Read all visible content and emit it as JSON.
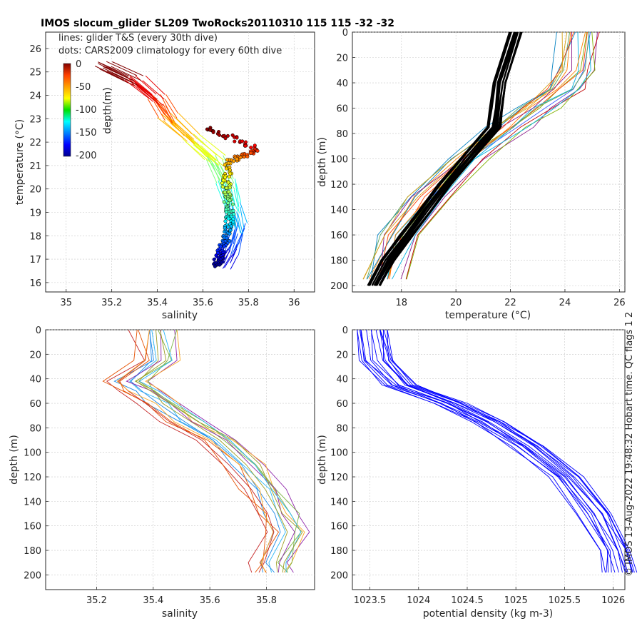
{
  "title": "IMOS slocum_glider SL209 TwoRocks20110310 115  115  -32  -32",
  "side_text": "© IMOS 13-Aug-2022 19:48:32 Hobart time. QC flags 1  2",
  "legend": {
    "line1": "lines: glider T&S (every 30th dive)",
    "line2": "dots: CARS2009 climatology for every 60th dive"
  },
  "colorbar": {
    "label": "depth(m)",
    "ticks": [
      "0",
      "-50",
      "-100",
      "-150",
      "-200"
    ]
  },
  "colors": {
    "profile_blue": "#0000ff",
    "clim_black": "#000000",
    "grid": "#c8c8c8"
  },
  "chart_data": [
    {
      "type": "scatter",
      "name": "TS diagram",
      "xlabel": "salinity",
      "ylabel": "temperature (°C)",
      "xlim": [
        34.91,
        36.09
      ],
      "ylim": [
        15.6,
        26.7
      ],
      "xticks": [
        "35",
        "35.2",
        "35.4",
        "35.6",
        "35.8",
        "36"
      ],
      "yticks": [
        "16",
        "17",
        "18",
        "19",
        "20",
        "21",
        "22",
        "23",
        "24",
        "25",
        "26"
      ],
      "glider_ts": [
        [
          35.17,
          25.2
        ],
        [
          35.3,
          24.6
        ],
        [
          35.4,
          23.8
        ],
        [
          35.45,
          23.0
        ],
        [
          35.55,
          22.1
        ],
        [
          35.65,
          21.2
        ],
        [
          35.7,
          20.2
        ],
        [
          35.73,
          19.2
        ],
        [
          35.75,
          18.3
        ],
        [
          35.72,
          17.4
        ],
        [
          35.68,
          16.8
        ]
      ],
      "climatology_ts": [
        [
          35.62,
          22.6
        ],
        [
          35.85,
          21.7
        ],
        [
          35.72,
          21.2
        ],
        [
          35.7,
          20.0
        ],
        [
          35.72,
          19.0
        ],
        [
          35.71,
          18.2
        ],
        [
          35.68,
          17.3
        ],
        [
          35.66,
          16.7
        ]
      ]
    },
    {
      "type": "line",
      "name": "temperature profiles",
      "xlabel": "temperature (°C)",
      "ylabel": "depth (m)",
      "xlim": [
        16.2,
        26.2
      ],
      "ylim": [
        0,
        205
      ],
      "xticks": [
        "18",
        "20",
        "22",
        "24",
        "26"
      ],
      "yticks": [
        "0",
        "20",
        "40",
        "60",
        "80",
        "100",
        "120",
        "140",
        "160",
        "180",
        "200"
      ],
      "climatology_profile": [
        [
          22.2,
          0
        ],
        [
          21.6,
          40
        ],
        [
          21.5,
          60
        ],
        [
          21.4,
          75
        ],
        [
          20.4,
          100
        ],
        [
          19.6,
          120
        ],
        [
          18.9,
          140
        ],
        [
          18.2,
          160
        ],
        [
          17.5,
          180
        ],
        [
          17.0,
          200
        ]
      ],
      "glider_profile_example": [
        [
          24.6,
          0
        ],
        [
          24.4,
          30
        ],
        [
          24.0,
          45
        ],
        [
          23.0,
          60
        ],
        [
          22.0,
          75
        ],
        [
          20.5,
          100
        ],
        [
          19.0,
          130
        ],
        [
          18.0,
          160
        ],
        [
          17.4,
          195
        ]
      ]
    },
    {
      "type": "line",
      "name": "salinity profiles",
      "xlabel": "salinity",
      "ylabel": "depth (m)",
      "xlim": [
        35.02,
        35.97
      ],
      "ylim": [
        0,
        212
      ],
      "xticks": [
        "35.2",
        "35.4",
        "35.6",
        "35.8"
      ],
      "yticks": [
        "0",
        "20",
        "40",
        "60",
        "80",
        "100",
        "120",
        "140",
        "160",
        "180",
        "200"
      ],
      "profile_example": [
        [
          35.4,
          0
        ],
        [
          35.41,
          25
        ],
        [
          35.3,
          42
        ],
        [
          35.35,
          50
        ],
        [
          35.42,
          60
        ],
        [
          35.5,
          75
        ],
        [
          35.62,
          90
        ],
        [
          35.72,
          110
        ],
        [
          35.78,
          130
        ],
        [
          35.83,
          150
        ],
        [
          35.86,
          165
        ],
        [
          35.82,
          190
        ],
        [
          35.82,
          198
        ]
      ]
    },
    {
      "type": "line",
      "name": "density profiles",
      "xlabel": "potential density (kg m-3)",
      "ylabel": "depth (m)",
      "xlim": [
        1023.32,
        1026.12
      ],
      "ylim": [
        0,
        212
      ],
      "xticks": [
        "1023.5",
        "1024",
        "1024.5",
        "1025",
        "1025.5",
        "1026"
      ],
      "yticks": [
        "0",
        "20",
        "40",
        "60",
        "80",
        "100",
        "120",
        "140",
        "160",
        "180",
        "200"
      ],
      "profile_example": [
        [
          1023.5,
          0
        ],
        [
          1023.55,
          25
        ],
        [
          1023.8,
          45
        ],
        [
          1024.3,
          60
        ],
        [
          1024.7,
          75
        ],
        [
          1025.1,
          95
        ],
        [
          1025.5,
          120
        ],
        [
          1025.8,
          150
        ],
        [
          1026.0,
          180
        ],
        [
          1026.05,
          198
        ]
      ]
    }
  ]
}
